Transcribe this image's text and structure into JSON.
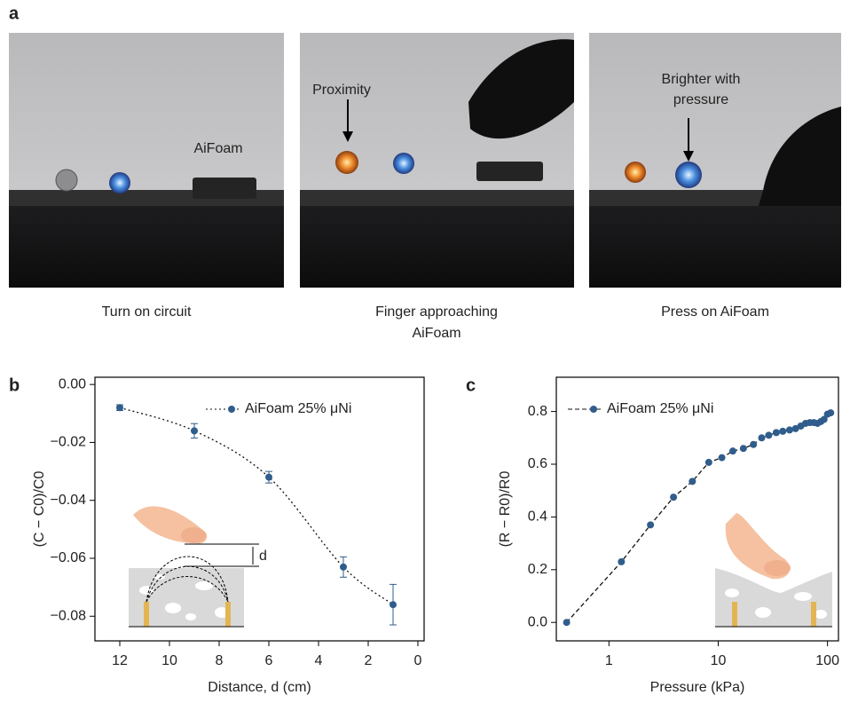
{
  "panel_a": {
    "label": "a",
    "photos": [
      {
        "caption": "Turn on circuit",
        "annotation": "AiFoam"
      },
      {
        "caption": [
          "Finger approaching",
          "AiFoam"
        ],
        "annotation": "Proximity"
      },
      {
        "caption": "Press on AiFoam",
        "annotation": [
          "Brighter with",
          "pressure"
        ]
      }
    ]
  },
  "chart_data": [
    {
      "type": "scatter",
      "panel_label": "b",
      "x_label": "Distance, d (cm)",
      "y_label": "(C − C0)/C0",
      "inset_label": "d",
      "series": [
        {
          "name": "AiFoam 25% μNi",
          "color": "#2f5d8c",
          "line_style": "dotted",
          "x": [
            12,
            9,
            6,
            3,
            1
          ],
          "values": [
            -0.008,
            -0.016,
            -0.032,
            -0.063,
            -0.076
          ],
          "errors": [
            0.001,
            0.0025,
            0.002,
            0.0035,
            0.007
          ]
        }
      ],
      "xlim": [
        13,
        -0.25
      ],
      "xticks": [
        12,
        10,
        8,
        6,
        4,
        2,
        0
      ],
      "ylim": [
        -0.0885,
        0.0025
      ],
      "yticks": [
        {
          "value": 0,
          "label": "0.00"
        },
        {
          "value": -0.02,
          "label": "−0.02"
        },
        {
          "value": -0.04,
          "label": "−0.04"
        },
        {
          "value": -0.06,
          "label": "−0.06"
        },
        {
          "value": -0.08,
          "label": "−0.08"
        }
      ]
    },
    {
      "type": "scatter",
      "panel_label": "c",
      "x_label": "Pressure (kPa)",
      "y_label": "(R − R0)/R0",
      "log_x": true,
      "series": [
        {
          "name": "AiFoam 25% μNi",
          "color": "#2f5d8c",
          "line_style": "dashed",
          "x": [
            0.41,
            1.3,
            2.4,
            3.9,
            5.8,
            8.2,
            10.8,
            13.6,
            17,
            21,
            25,
            29,
            34,
            39,
            45,
            51,
            57,
            63,
            69,
            75,
            81,
            87,
            93,
            100,
            107
          ],
          "values": [
            0.0,
            0.23,
            0.37,
            0.475,
            0.535,
            0.607,
            0.625,
            0.65,
            0.66,
            0.675,
            0.7,
            0.71,
            0.72,
            0.725,
            0.73,
            0.735,
            0.745,
            0.755,
            0.758,
            0.758,
            0.755,
            0.762,
            0.77,
            0.79,
            0.795
          ]
        }
      ],
      "xlim": [
        0.33,
        126
      ],
      "xticks": [
        1,
        10,
        100
      ],
      "ylim": [
        -0.07,
        0.93
      ],
      "yticks": [
        {
          "value": 0,
          "label": "0.0"
        },
        0.2,
        0.4,
        0.6,
        0.8
      ]
    }
  ]
}
